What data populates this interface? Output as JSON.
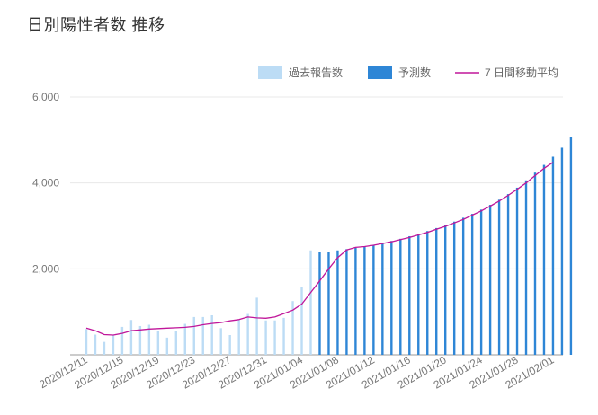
{
  "title": "日別陽性者数 推移",
  "colors": {
    "reported": "#bcdcf5",
    "forecast": "#2e86d6",
    "average": "#c0169a",
    "grid": "#e8e8e8",
    "axis": "#999999"
  },
  "chart_data": {
    "type": "bar",
    "legend_position": "top-right",
    "ylim": [
      0,
      6000
    ],
    "yticks": [
      2000,
      4000,
      6000
    ],
    "ytick_labels": [
      "2,000",
      "4,000",
      "6,000"
    ],
    "xtick_labels": [
      "2020/12/11",
      "2020/12/15",
      "2020/12/19",
      "2020/12/23",
      "2020/12/27",
      "2020/12/31",
      "2021/01/04",
      "2021/01/08",
      "2021/01/12",
      "2021/01/16",
      "2021/01/20",
      "2021/01/24",
      "2021/01/28",
      "2021/02/01"
    ],
    "xtick_every": 4,
    "series": [
      {
        "name": "過去報告数",
        "kind": "bar",
        "values": [
          600,
          470,
          300,
          450,
          650,
          810,
          670,
          700,
          550,
          400,
          560,
          720,
          880,
          880,
          920,
          620,
          460,
          820,
          950,
          1330,
          800,
          800,
          860,
          1250,
          1580,
          2430
        ]
      },
      {
        "name": "予測数",
        "kind": "bar",
        "values": [
          null,
          null,
          null,
          null,
          null,
          null,
          null,
          null,
          null,
          null,
          null,
          null,
          null,
          null,
          null,
          null,
          null,
          null,
          null,
          null,
          null,
          null,
          null,
          null,
          null,
          null,
          2400,
          2400,
          2430,
          2460,
          2490,
          2520,
          2560,
          2600,
          2650,
          2700,
          2760,
          2820,
          2880,
          2950,
          3020,
          3100,
          3190,
          3280,
          3380,
          3490,
          3610,
          3740,
          3890,
          4060,
          4240,
          4420,
          4610,
          4820,
          5060
        ]
      },
      {
        "name": "7 日間移動平均",
        "kind": "line",
        "values": [
          620,
          560,
          470,
          460,
          500,
          560,
          580,
          600,
          610,
          620,
          630,
          640,
          660,
          700,
          730,
          750,
          790,
          820,
          880,
          860,
          850,
          880,
          960,
          1040,
          1180,
          1450,
          1720,
          2000,
          2260,
          2440,
          2500,
          2520,
          2550,
          2590,
          2630,
          2680,
          2730,
          2790,
          2850,
          2920,
          2990,
          3070,
          3150,
          3250,
          3350,
          3460,
          3580,
          3710,
          3850,
          4000,
          4170,
          4340,
          4480
        ]
      }
    ]
  }
}
